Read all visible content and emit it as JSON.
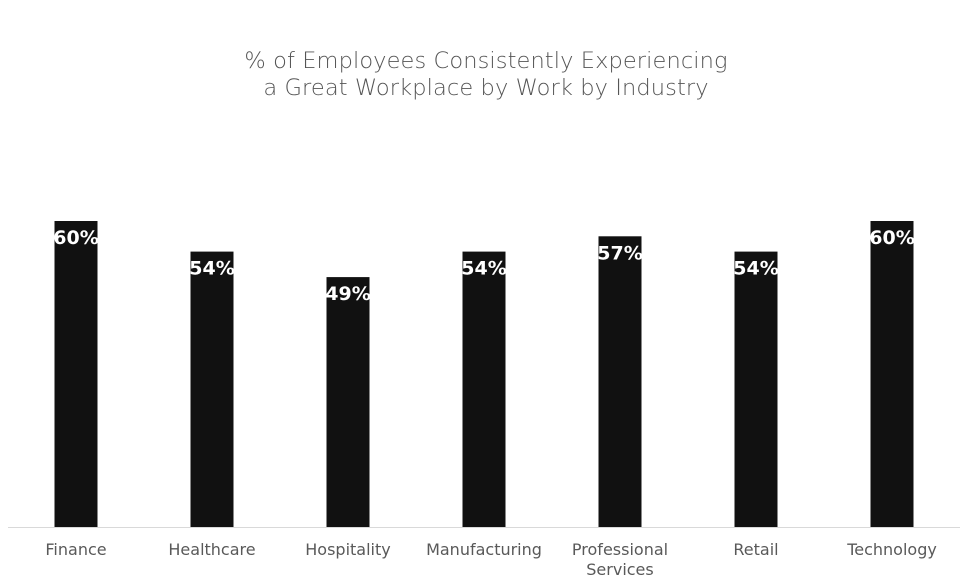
{
  "chart_data": {
    "type": "bar",
    "title_lines": [
      "% of Employees Consistently Experiencing",
      "a Great Workplace by Work by Industry"
    ],
    "categories": [
      [
        "Finance"
      ],
      [
        "Healthcare"
      ],
      [
        "Hospitality"
      ],
      [
        "Manufacturing"
      ],
      [
        "Professional",
        "Services"
      ],
      [
        "Retail"
      ],
      [
        "Technology"
      ]
    ],
    "values": [
      60,
      54,
      49,
      54,
      57,
      54,
      60
    ],
    "value_labels": [
      "60%",
      "54%",
      "49%",
      "54%",
      "57%",
      "54%",
      "60%"
    ],
    "bar_color": "#111111",
    "label_color": "#ffffff",
    "grid": false,
    "legend": "none"
  }
}
